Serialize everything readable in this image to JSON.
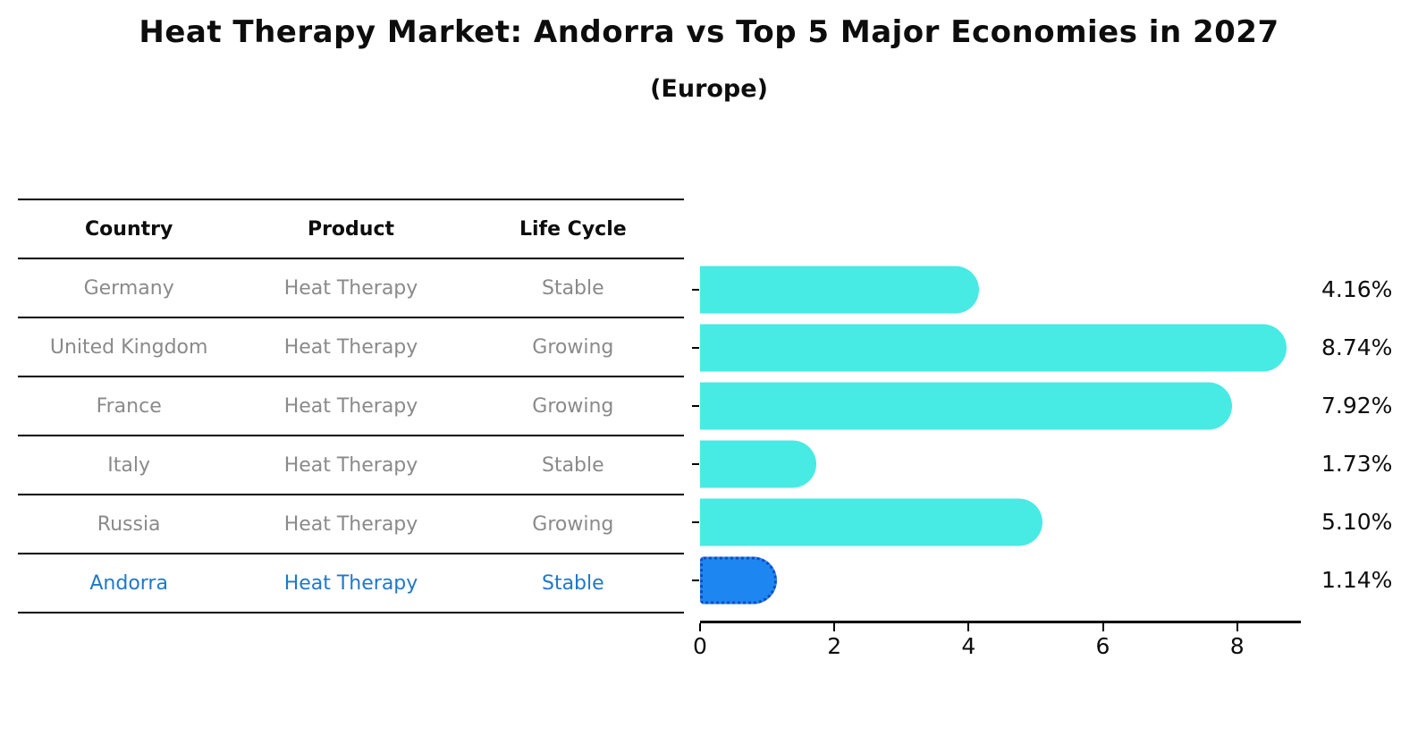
{
  "title": "Heat Therapy Market: Andorra vs Top 5 Major Economies in 2027",
  "subtitle": "(Europe)",
  "table": {
    "headers": [
      "Country",
      "Product",
      "Life Cycle"
    ],
    "rows": [
      {
        "country": "Germany",
        "product": "Heat Therapy",
        "life_cycle": "Stable",
        "highlight": false
      },
      {
        "country": "United Kingdom",
        "product": "Heat Therapy",
        "life_cycle": "Growing",
        "highlight": false
      },
      {
        "country": "France",
        "product": "Heat Therapy",
        "life_cycle": "Growing",
        "highlight": false
      },
      {
        "country": "Italy",
        "product": "Heat Therapy",
        "life_cycle": "Stable",
        "highlight": false
      },
      {
        "country": "Russia",
        "product": "Heat Therapy",
        "life_cycle": "Growing",
        "highlight": false
      },
      {
        "country": "Andorra",
        "product": "Heat Therapy",
        "life_cycle": "Stable",
        "highlight": true
      }
    ]
  },
  "chart_data": {
    "type": "bar",
    "orientation": "horizontal",
    "categories": [
      "Germany",
      "United Kingdom",
      "France",
      "Italy",
      "Russia",
      "Andorra"
    ],
    "values": [
      4.16,
      8.74,
      7.92,
      1.73,
      5.1,
      1.14
    ],
    "value_labels": [
      "4.16%",
      "8.74%",
      "7.92%",
      "1.73%",
      "5.10%",
      "1.14%"
    ],
    "highlight_index": 5,
    "xlabel": "",
    "ylabel": "",
    "xlim": [
      0,
      8.95
    ],
    "xticks": [
      0,
      2,
      4,
      6,
      8
    ],
    "xtick_labels": [
      "0",
      "2",
      "4",
      "6",
      "8"
    ],
    "grid": false,
    "legend": false,
    "bar_color": "#48EAE4",
    "highlight_bar_color": "#1E86F0",
    "highlight_border_color": "#1348C4",
    "highlight_text_color": "#1f78c8",
    "table_text_color": "#8a8a8a"
  }
}
